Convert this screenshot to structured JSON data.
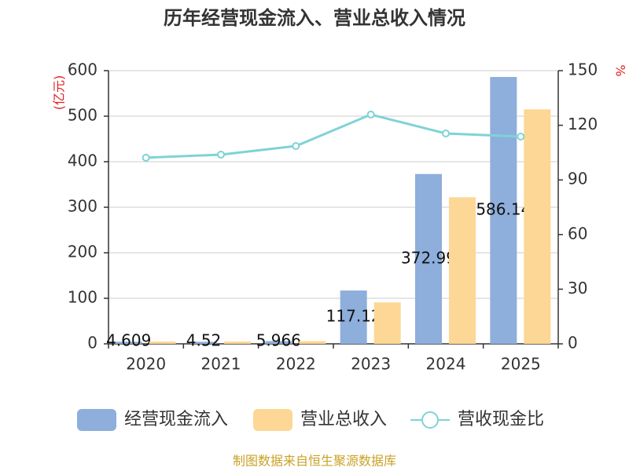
{
  "chart_data": {
    "type": "bar",
    "title": "历年经营现金流入、营业总收入情况",
    "y_label": "(亿元)",
    "y2_label": "%",
    "categories": [
      "2020",
      "2021",
      "2022",
      "2023",
      "2024",
      "2025"
    ],
    "series": [
      {
        "name": "经营现金流入",
        "color": "#8eaedb",
        "values": [
          4.609,
          4.52,
          5.966,
          117.12,
          372.99,
          586.14
        ],
        "value_labels": [
          "4.609",
          "4.52",
          "5.966",
          "117.12",
          "372.99",
          "586.14"
        ]
      },
      {
        "name": "营业总收入",
        "color": "#fdd795",
        "values": [
          5,
          5,
          6,
          91,
          322,
          515
        ]
      },
      {
        "name": "营收现金比",
        "type": "line",
        "axis": "y2",
        "color": "#7fd3d6",
        "values": [
          102.2,
          103.9,
          108.6,
          125.9,
          115.5,
          113.8
        ]
      }
    ],
    "ylim": [
      0,
      600
    ],
    "yticks": [
      0,
      100,
      200,
      300,
      400,
      500,
      600
    ],
    "y2lim": [
      0,
      150
    ],
    "y2ticks": [
      0,
      30,
      60,
      90,
      120,
      150
    ],
    "grid": true,
    "legend": "bottom",
    "source": "制图数据来自恒生聚源数据库"
  }
}
